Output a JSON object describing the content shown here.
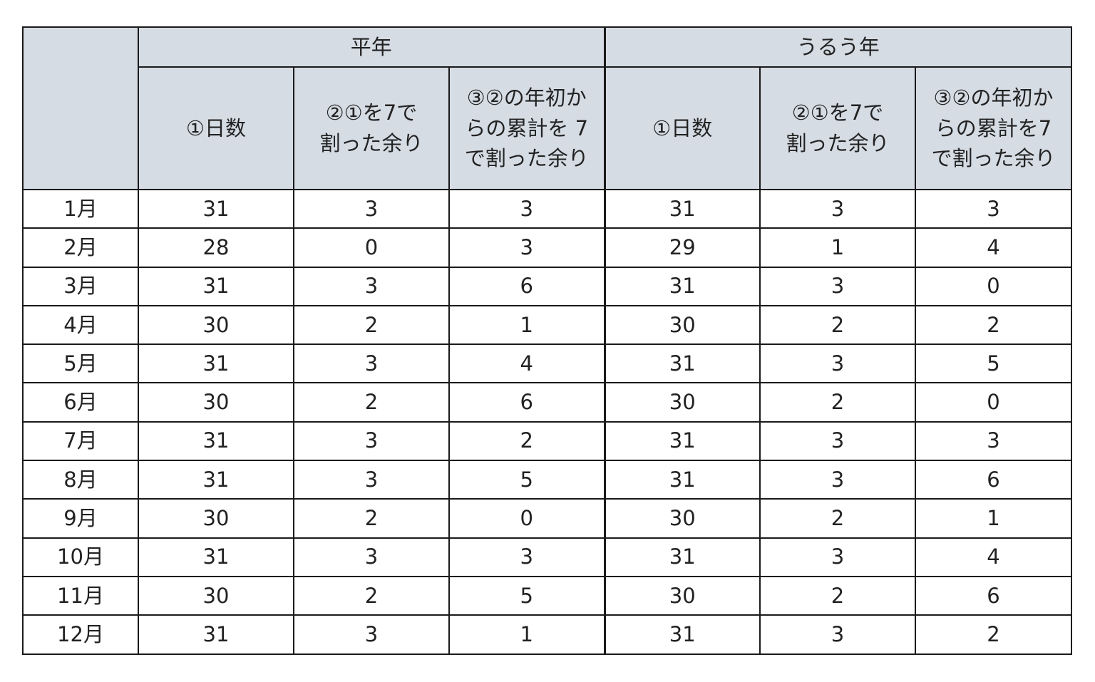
{
  "header": {
    "corner": "",
    "groups": [
      "平年",
      "うるう年"
    ],
    "subheaders": [
      "①日数",
      "②①を7で\n割った余り",
      "③②の年初か\nらの累計を 7\nで割った余り",
      "①日数",
      "②①を7で\n割った余り",
      "③②の年初か\nらの累計を7\nで割った余り"
    ]
  },
  "rows": [
    {
      "month": "1月",
      "values": [
        "31",
        "3",
        "3",
        "31",
        "3",
        "3"
      ]
    },
    {
      "month": "2月",
      "values": [
        "28",
        "0",
        "3",
        "29",
        "1",
        "4"
      ]
    },
    {
      "month": "3月",
      "values": [
        "31",
        "3",
        "6",
        "31",
        "3",
        "0"
      ]
    },
    {
      "month": "4月",
      "values": [
        "30",
        "2",
        "1",
        "30",
        "2",
        "2"
      ]
    },
    {
      "month": "5月",
      "values": [
        "31",
        "3",
        "4",
        "31",
        "3",
        "5"
      ]
    },
    {
      "month": "6月",
      "values": [
        "30",
        "2",
        "6",
        "30",
        "2",
        "0"
      ]
    },
    {
      "month": "7月",
      "values": [
        "31",
        "3",
        "2",
        "31",
        "3",
        "3"
      ]
    },
    {
      "month": "8月",
      "values": [
        "31",
        "3",
        "5",
        "31",
        "3",
        "6"
      ]
    },
    {
      "month": "9月",
      "values": [
        "30",
        "2",
        "0",
        "30",
        "2",
        "1"
      ]
    },
    {
      "month": "10月",
      "values": [
        "31",
        "3",
        "3",
        "31",
        "3",
        "4"
      ]
    },
    {
      "month": "11月",
      "values": [
        "30",
        "2",
        "5",
        "30",
        "2",
        "6"
      ]
    },
    {
      "month": "12月",
      "values": [
        "31",
        "3",
        "1",
        "31",
        "3",
        "2"
      ]
    }
  ],
  "colors": {
    "header_background": "#d6dce4",
    "border": "#1a1a1a",
    "cell_background": "#ffffff"
  }
}
